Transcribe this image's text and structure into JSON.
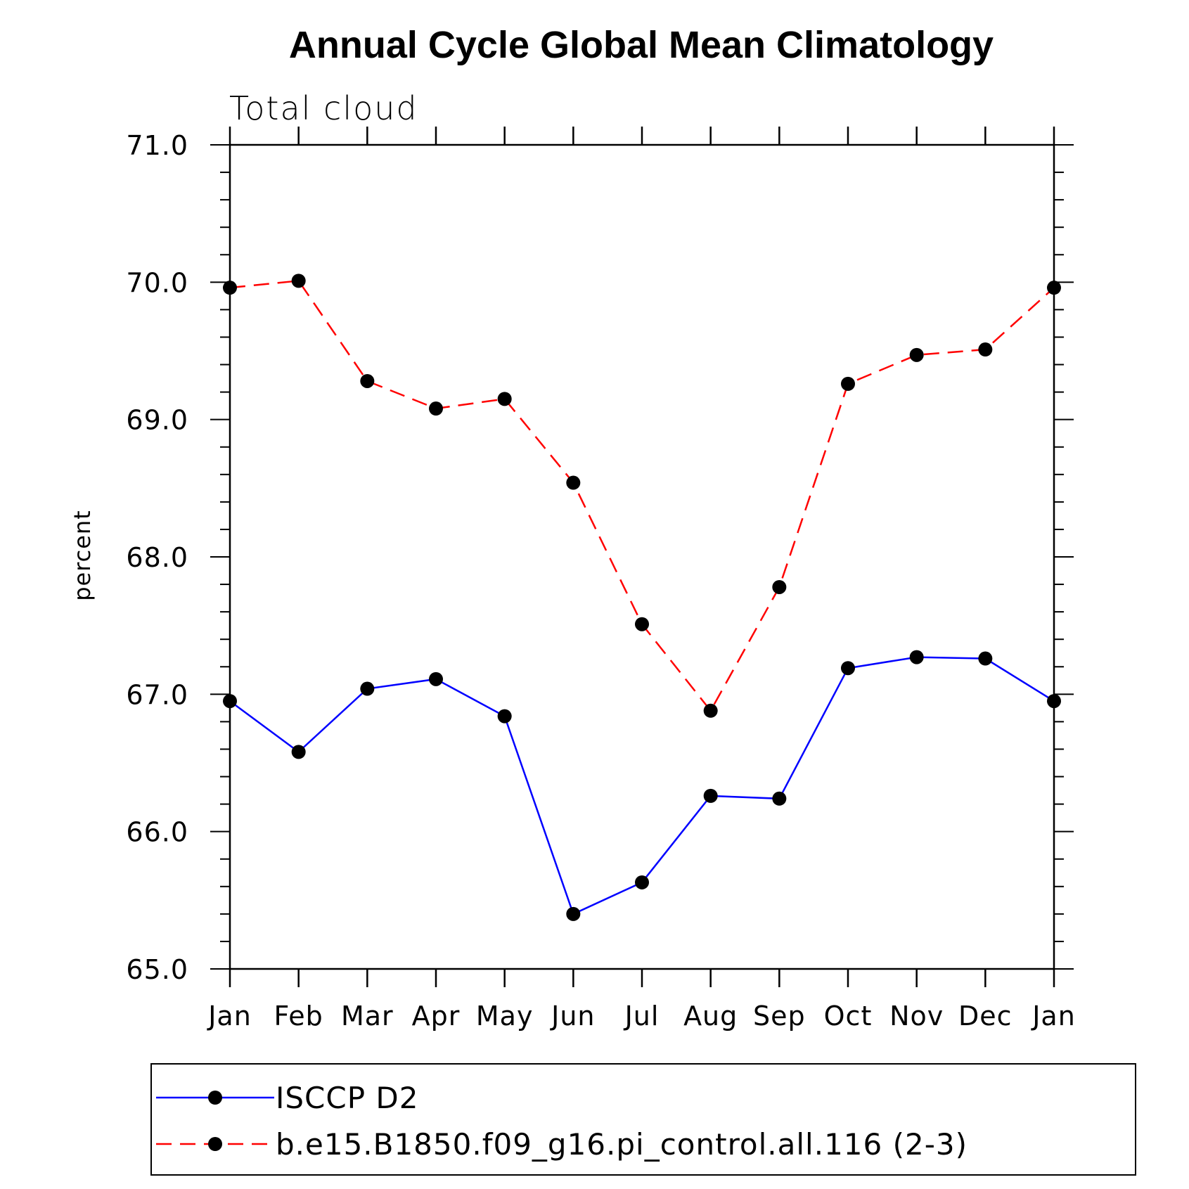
{
  "chart_data": {
    "type": "line",
    "title": "Annual Cycle Global Mean Climatology",
    "subtitle": "Total cloud",
    "xlabel": "",
    "ylabel": "percent",
    "categories": [
      "Jan",
      "Feb",
      "Mar",
      "Apr",
      "May",
      "Jun",
      "Jul",
      "Aug",
      "Sep",
      "Oct",
      "Nov",
      "Dec",
      "Jan"
    ],
    "ylim": [
      65.0,
      71.0
    ],
    "yticks": [
      "65.0",
      "66.0",
      "67.0",
      "68.0",
      "69.0",
      "70.0",
      "71.0"
    ],
    "grid": false,
    "legend_position": "bottom",
    "series": [
      {
        "name": "ISCCP D2",
        "color": "#0000ff",
        "dash": "solid",
        "values": [
          66.95,
          66.58,
          67.04,
          67.11,
          66.84,
          65.4,
          65.63,
          66.26,
          66.24,
          67.19,
          67.27,
          67.26,
          66.95
        ]
      },
      {
        "name": "b.e15.B1850.f09_g16.pi_control.all.116 (2-3)",
        "color": "#ff0000",
        "dash": "dashed",
        "values": [
          69.96,
          70.01,
          69.28,
          69.08,
          69.15,
          68.54,
          67.51,
          66.88,
          67.78,
          69.26,
          69.47,
          69.51,
          69.96
        ]
      }
    ]
  }
}
